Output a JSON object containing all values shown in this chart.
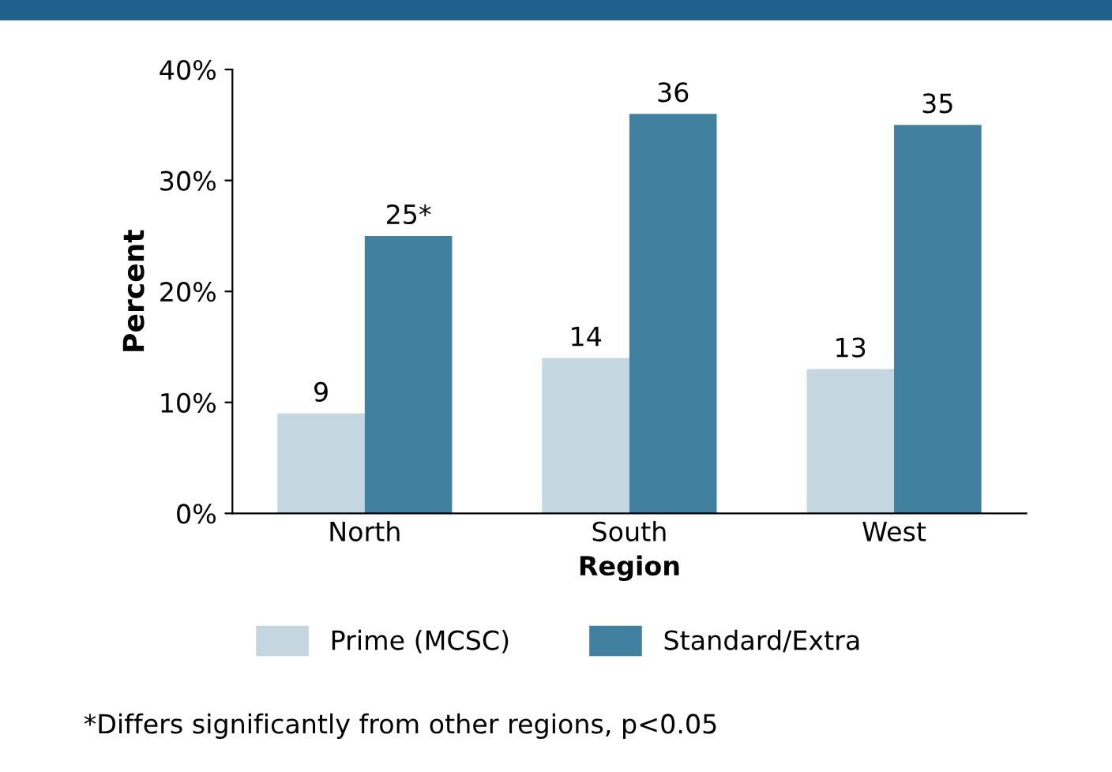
{
  "chart_data": {
    "type": "bar",
    "xlabel": "Region",
    "ylabel": "Percent",
    "categories": [
      "North",
      "South",
      "West"
    ],
    "series": [
      {
        "name": "Prime (MCSC)",
        "color": "#c4d6df",
        "values": [
          9,
          14,
          13
        ],
        "value_labels": [
          "9",
          "14",
          "13"
        ]
      },
      {
        "name": "Standard/Extra",
        "color": "#41809f",
        "values": [
          25,
          36,
          35
        ],
        "value_labels": [
          "25*",
          "36",
          "35"
        ]
      }
    ],
    "ylim": [
      0,
      40
    ],
    "yticks": [
      {
        "value": 0,
        "label": "0%"
      },
      {
        "value": 10,
        "label": "10%"
      },
      {
        "value": 20,
        "label": "20%"
      },
      {
        "value": 30,
        "label": "30%"
      },
      {
        "value": 40,
        "label": "40%"
      }
    ],
    "grid": false,
    "legend": "bottom",
    "annotations": [
      "*Differs significantly from other regions, p<0.05"
    ]
  }
}
